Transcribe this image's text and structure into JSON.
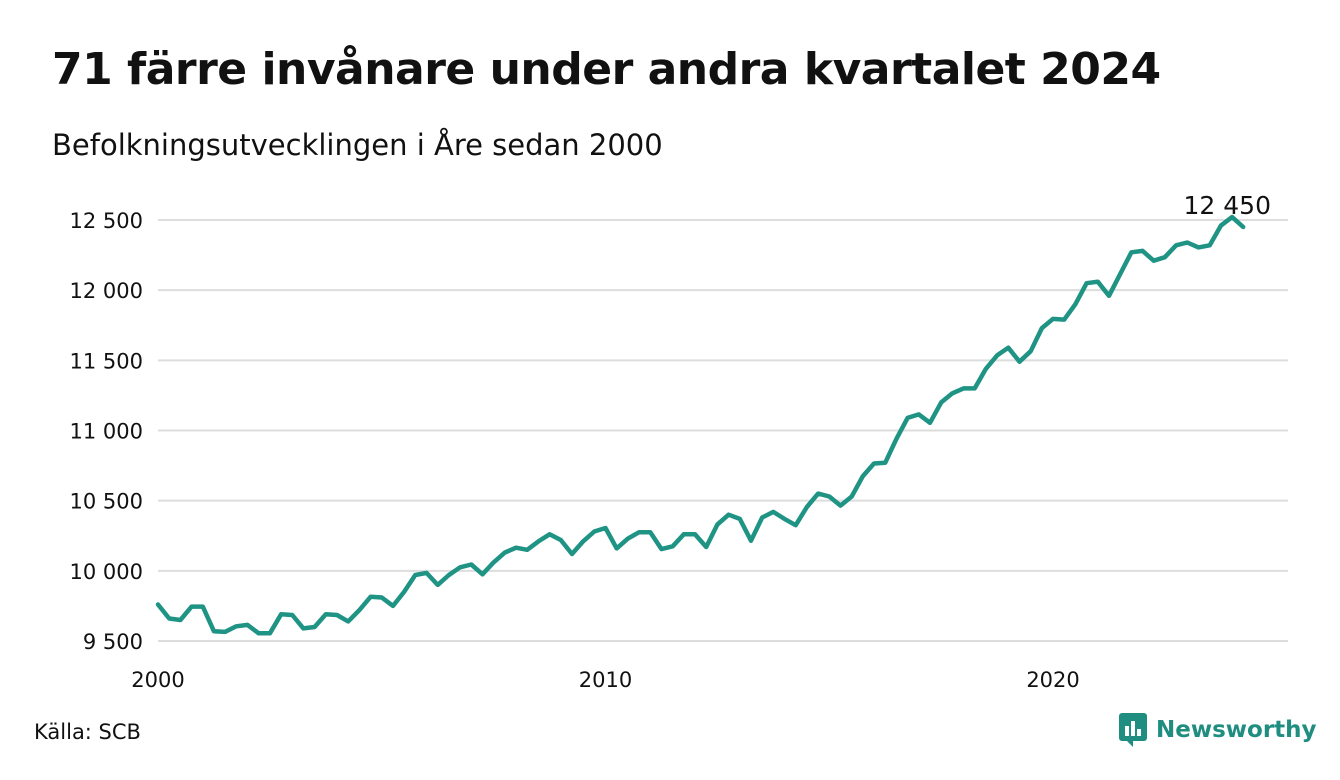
{
  "title": "71 färre invånare under andra kvartalet 2024",
  "subtitle": "Befolkningsutvecklingen i Åre sedan 2000",
  "source": "Källa: SCB",
  "brand": "Newsworthy",
  "colors": {
    "line": "#1f9384",
    "grid": "#dddddd",
    "brand": "#1f8d80"
  },
  "chart_data": {
    "type": "line",
    "title": "71 färre invånare under andra kvartalet 2024",
    "subtitle": "Befolkningsutvecklingen i Åre sedan 2000",
    "xlabel": "",
    "ylabel": "",
    "x_start": 2000,
    "x_step": 0.25,
    "xlim": [
      2000,
      2025.25
    ],
    "ylim": [
      9500,
      12500
    ],
    "xticks": [
      2000,
      2010,
      2020
    ],
    "xtick_labels": [
      "2000",
      "2010",
      "2020"
    ],
    "yticks": [
      9500,
      10000,
      10500,
      11000,
      11500,
      12000,
      12500
    ],
    "ytick_labels": [
      "9 500",
      "10 000",
      "10 500",
      "11 000",
      "11 500",
      "12 000",
      "12 500"
    ],
    "grid": "horizontal",
    "end_label": "12 450",
    "values": [
      9760,
      9660,
      9650,
      9745,
      9745,
      9570,
      9565,
      9605,
      9615,
      9555,
      9555,
      9690,
      9685,
      9590,
      9600,
      9690,
      9685,
      9640,
      9720,
      9815,
      9810,
      9750,
      9850,
      9970,
      9985,
      9900,
      9970,
      10025,
      10045,
      9975,
      10060,
      10130,
      10165,
      10150,
      10210,
      10260,
      10220,
      10120,
      10210,
      10280,
      10305,
      10160,
      10230,
      10275,
      10275,
      10155,
      10175,
      10260,
      10260,
      10170,
      10330,
      10400,
      10370,
      10215,
      10380,
      10420,
      10370,
      10325,
      10455,
      10550,
      10530,
      10465,
      10530,
      10675,
      10765,
      10770,
      10940,
      11090,
      11115,
      11055,
      11200,
      11265,
      11300,
      11300,
      11440,
      11535,
      11590,
      11490,
      11565,
      11730,
      11795,
      11790,
      11900,
      12050,
      12060,
      11960,
      12115,
      12270,
      12280,
      12210,
      12235,
      12320,
      12340,
      12305,
      12320,
      12460,
      12521,
      12450
    ]
  }
}
